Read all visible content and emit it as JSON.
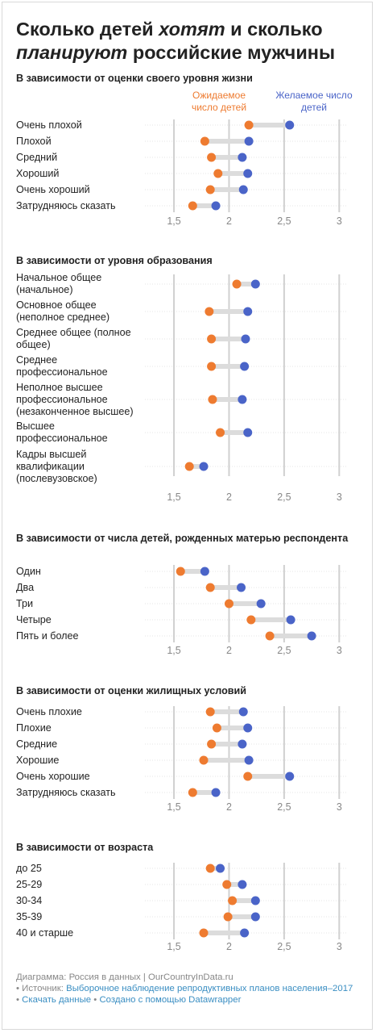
{
  "title": {
    "part1": "Сколько детей ",
    "em1": "хотят",
    "part2": " и сколько",
    "em2": "планируют",
    "part3": " российские мужчины"
  },
  "legend": {
    "expected": "Ожидаемое число детей",
    "desired": "Желаемое число детей"
  },
  "colors": {
    "expected": "#ee7b30",
    "desired": "#4a64c8",
    "bar": "#dcdcdc",
    "grid": "#d0d0d0"
  },
  "chart_data": [
    {
      "type": "dot",
      "title": "В зависимости от оценки своего уровня жизни",
      "xlim": [
        1.2,
        3.1
      ],
      "ticks": [
        "1,5",
        "2",
        "2,5",
        "3"
      ],
      "tick_values": [
        1.5,
        2,
        2.5,
        3
      ],
      "categories": [
        "Очень плохой",
        "Плохой",
        "Средний",
        "Хороший",
        "Очень хороший",
        "Затрудняюсь сказать"
      ],
      "series": [
        {
          "name": "Ожидаемое число детей",
          "values": [
            2.18,
            1.78,
            1.84,
            1.9,
            1.83,
            1.67
          ]
        },
        {
          "name": "Желаемое число детей",
          "values": [
            2.55,
            2.18,
            2.12,
            2.17,
            2.13,
            1.88
          ]
        }
      ]
    },
    {
      "type": "dot",
      "title": "В зависимости от уровня образования",
      "xlim": [
        1.2,
        3.1
      ],
      "ticks": [
        "1,5",
        "2",
        "2,5",
        "3"
      ],
      "tick_values": [
        1.5,
        2,
        2.5,
        3
      ],
      "categories": [
        [
          "Начальное общее",
          "(начальное)"
        ],
        [
          "Основное общее",
          "(неполное среднее)"
        ],
        [
          "Среднее общее (полное",
          "общее)"
        ],
        [
          "Среднее",
          "профессиональное"
        ],
        [
          "Неполное высшее",
          "профессиональное",
          "(незаконченное высшее)"
        ],
        [
          "Высшее",
          "профессиональное"
        ],
        [
          "Кадры высшей",
          "квалификации",
          "(послевузовское)"
        ]
      ],
      "series": [
        {
          "name": "Ожидаемое число детей",
          "values": [
            2.07,
            1.82,
            1.84,
            1.84,
            1.85,
            1.92,
            1.64
          ]
        },
        {
          "name": "Желаемое число детей",
          "values": [
            2.24,
            2.17,
            2.15,
            2.14,
            2.12,
            2.17,
            1.77
          ]
        }
      ]
    },
    {
      "type": "dot",
      "title": "В зависимости от числа детей, рожденных матерью респондента",
      "xlim": [
        1.2,
        3.1
      ],
      "ticks": [
        "1,5",
        "2",
        "2,5",
        "3"
      ],
      "tick_values": [
        1.5,
        2,
        2.5,
        3
      ],
      "categories": [
        "Один",
        "Два",
        "Три",
        "Четыре",
        "Пять и более"
      ],
      "series": [
        {
          "name": "Ожидаемое число детей",
          "values": [
            1.56,
            1.83,
            2.0,
            2.2,
            2.37
          ]
        },
        {
          "name": "Желаемое число детей",
          "values": [
            1.78,
            2.11,
            2.29,
            2.56,
            2.75
          ]
        }
      ]
    },
    {
      "type": "dot",
      "title": "В зависимости от оценки жилищных условий",
      "xlim": [
        1.2,
        3.1
      ],
      "ticks": [
        "1,5",
        "2",
        "2,5",
        "3"
      ],
      "tick_values": [
        1.5,
        2,
        2.5,
        3
      ],
      "categories": [
        "Очень плохие",
        "Плохие",
        "Средние",
        "Хорошие",
        "Очень хорошие",
        "Затрудняюсь сказать"
      ],
      "series": [
        {
          "name": "Ожидаемое число детей",
          "values": [
            1.83,
            1.89,
            1.84,
            1.77,
            2.17,
            1.67
          ]
        },
        {
          "name": "Желаемое число детей",
          "values": [
            2.13,
            2.17,
            2.12,
            2.18,
            2.55,
            1.88
          ]
        }
      ]
    },
    {
      "type": "dot",
      "title": "В зависимости от возраста",
      "xlim": [
        1.2,
        3.1
      ],
      "ticks": [
        "1,5",
        "2",
        "2,5",
        "3"
      ],
      "tick_values": [
        1.5,
        2,
        2.5,
        3
      ],
      "categories": [
        "до 25",
        "25-29",
        "30-34",
        "35-39",
        "40 и старше"
      ],
      "series": [
        {
          "name": "Ожидаемое число детей",
          "values": [
            1.83,
            1.98,
            2.03,
            1.99,
            1.77
          ]
        },
        {
          "name": "Желаемое число детей",
          "values": [
            1.92,
            2.12,
            2.24,
            2.24,
            2.14
          ]
        }
      ]
    }
  ],
  "footer": {
    "line1": "Диаграмма: Россия в данных | OurCountryInData.ru",
    "source_prefix": "• Источник: ",
    "source_link": "Выборочное наблюдение репродуктивных планов населения–2017",
    "download_prefix": "• ",
    "download_link": "Скачать данные",
    "made_prefix": " • ",
    "made_link": "Создано с помощью Datawrapper"
  }
}
